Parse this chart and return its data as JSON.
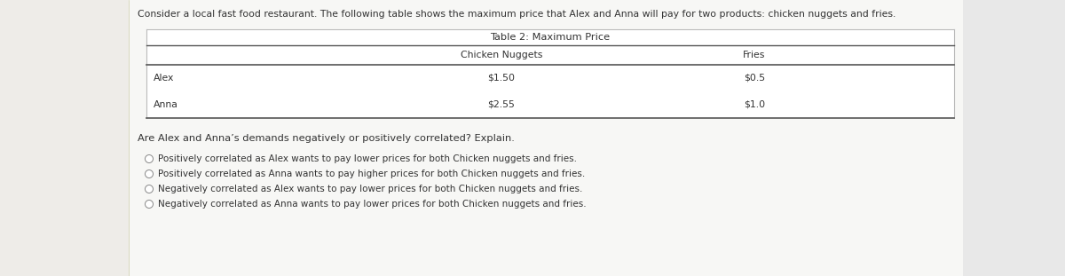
{
  "intro_text": "Consider a local fast food restaurant. The following table shows the maximum price that Alex and Anna will pay for two products: chicken nuggets and fries.",
  "table_title": "Table 2: Maximum Price",
  "col_headers": [
    "Chicken Nuggets",
    "Fries"
  ],
  "row_labels": [
    "Alex",
    "Anna"
  ],
  "table_data": [
    [
      "$1.50",
      "$0.5"
    ],
    [
      "$2.55",
      "$1.0"
    ]
  ],
  "question_text": "Are Alex and Anna’s demands negatively or positively correlated? Explain.",
  "options": [
    "Positively correlated as Alex wants to pay lower prices for both Chicken nuggets and fries.",
    "Positively correlated as Anna wants to pay higher prices for both Chicken nuggets and fries.",
    "Negatively correlated as Alex wants to pay lower prices for both Chicken nuggets and fries.",
    "Negatively correlated as Anna wants to pay lower prices for both Chicken nuggets and fries."
  ],
  "left_bg_color": "#eeece8",
  "right_bg_color": "#e8e8e8",
  "content_bg_color": "#f7f7f5",
  "table_bg": "#ffffff",
  "text_color": "#333333",
  "line_color_light": "#bbbbbb",
  "line_color_dark": "#555555",
  "font_size_intro": 7.8,
  "font_size_table_title": 8.2,
  "font_size_table": 7.8,
  "font_size_question": 8.2,
  "font_size_options": 7.5
}
